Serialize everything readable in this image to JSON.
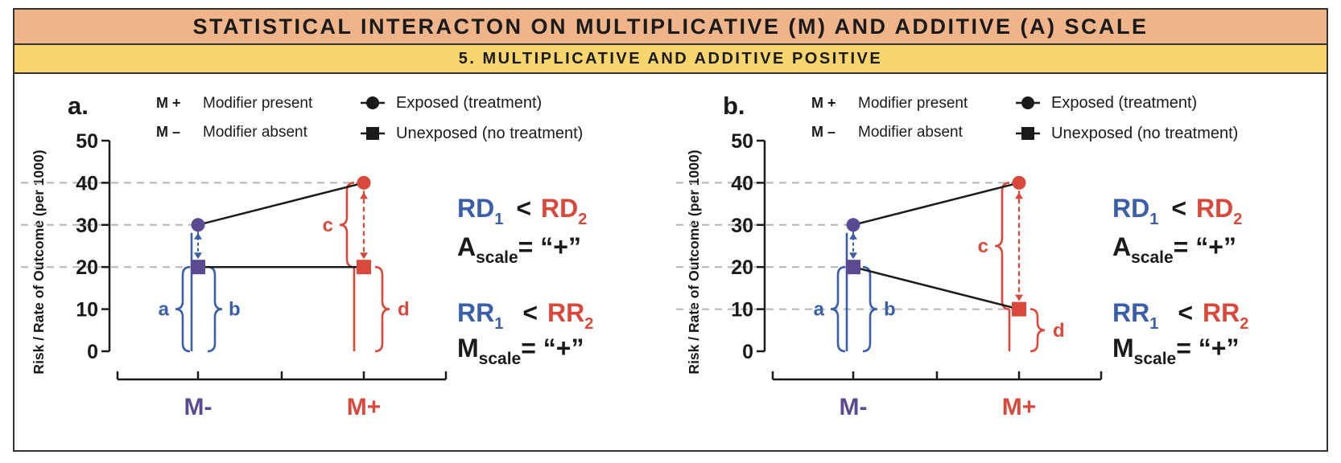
{
  "title": "STATISTICAL INTERACTON ON MULTIPLICATIVE (M)  AND ADDITIVE (A) SCALE",
  "subtitle": "5. MULTIPLICATIVE  AND ADDITIVE POSITIVE",
  "colors": {
    "blue": "#3a5fa8",
    "red": "#d8483b",
    "purple": "#5b4a92",
    "dash_grey": "#b5b5b5",
    "title_bg": "#f0b48a",
    "subtitle_bg": "#f9d56e"
  },
  "legend": {
    "m_plus_symbol": "M +",
    "m_plus_text": "Modifier present",
    "m_minus_symbol": "M –",
    "m_minus_text": "Modifier absent",
    "exposed_text": "Exposed (treatment)",
    "unexposed_text": "Unexposed (no treatment)",
    "exposed_icon": "circle-marker-icon",
    "unexposed_icon": "square-marker-icon"
  },
  "chart_data": [
    {
      "panel_label": "a.",
      "type": "line",
      "ylabel": "Risk / Rate of Outcome (per 1000)",
      "ylim": [
        0,
        50
      ],
      "yticks": [
        "0",
        "10",
        "20",
        "30",
        "40",
        "50"
      ],
      "categories": [
        "M-",
        "M+"
      ],
      "series": [
        {
          "name": "Exposed (treatment)",
          "marker": "circle",
          "values": [
            30,
            40
          ]
        },
        {
          "name": "Unexposed (no treatment)",
          "marker": "square",
          "values": [
            20,
            20
          ]
        }
      ],
      "braces": {
        "a": "a",
        "b": "b",
        "c": "c",
        "d": "d"
      },
      "annotations": {
        "rd1": "RD",
        "rd1_sub": "1",
        "rd_op": "<",
        "rd2": "RD",
        "rd2_sub": "2",
        "a_main": "A",
        "a_sub": "scale",
        "a_val": "= “+”",
        "rr1": "RR",
        "rr1_sub": "1",
        "rr_op": "<",
        "rr2": "RR",
        "rr2_sub": "2",
        "m_main": "M",
        "m_sub": "scale",
        "m_val": "= “+”"
      }
    },
    {
      "panel_label": "b.",
      "type": "line",
      "ylabel": "Risk / Rate of Outcome (per 1000)",
      "ylim": [
        0,
        50
      ],
      "yticks": [
        "0",
        "10",
        "20",
        "30",
        "40",
        "50"
      ],
      "categories": [
        "M-",
        "M+"
      ],
      "series": [
        {
          "name": "Exposed (treatment)",
          "marker": "circle",
          "values": [
            30,
            40
          ]
        },
        {
          "name": "Unexposed (no treatment)",
          "marker": "square",
          "values": [
            20,
            10
          ]
        }
      ],
      "braces": {
        "a": "a",
        "b": "b",
        "c": "c",
        "d": "d"
      },
      "annotations": {
        "rd1": "RD",
        "rd1_sub": "1",
        "rd_op": "<",
        "rd2": "RD",
        "rd2_sub": "2",
        "a_main": "A",
        "a_sub": "scale",
        "a_val": "= “+”",
        "rr1": "RR",
        "rr1_sub": "1",
        "rr_op": "<",
        "rr2": "RR",
        "rr2_sub": "2",
        "m_main": "M",
        "m_sub": "scale",
        "m_val": "= “+”"
      }
    }
  ]
}
